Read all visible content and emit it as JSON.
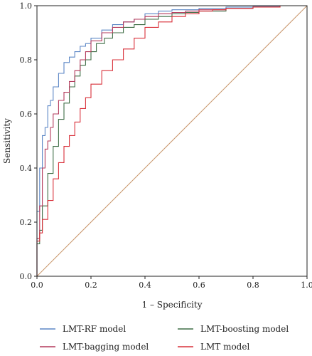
{
  "chart_data": {
    "type": "line",
    "title": "",
    "xlabel": "1 – Specificity",
    "ylabel": "Sensitivity",
    "xlim": [
      0,
      1
    ],
    "ylim": [
      0,
      1
    ],
    "xticks": [
      "0.0",
      "0.2",
      "0.4",
      "0.6",
      "0.8",
      "1.0"
    ],
    "yticks": [
      "0.0",
      "0.2",
      "0.4",
      "0.6",
      "0.8",
      "1.0"
    ],
    "grid": false,
    "legend_position": "bottom",
    "reference_line": {
      "color": "#c8956a",
      "x": [
        0,
        1
      ],
      "y": [
        0,
        1
      ]
    },
    "series": [
      {
        "name": "LMT-RF model",
        "color": "#5b86c5",
        "x": [
          0,
          0.01,
          0.02,
          0.03,
          0.04,
          0.05,
          0.06,
          0.08,
          0.1,
          0.12,
          0.14,
          0.16,
          0.18,
          0.2,
          0.24,
          0.28,
          0.32,
          0.36,
          0.4,
          0.45,
          0.5,
          0.6,
          0.7,
          0.8,
          0.9,
          0.96
        ],
        "y": [
          0,
          0.24,
          0.4,
          0.52,
          0.55,
          0.63,
          0.65,
          0.7,
          0.75,
          0.79,
          0.81,
          0.83,
          0.85,
          0.86,
          0.88,
          0.91,
          0.93,
          0.94,
          0.95,
          0.97,
          0.98,
          0.985,
          0.99,
          0.995,
          0.998,
          1.0
        ]
      },
      {
        "name": "LMT-boosting model",
        "color": "#3f6e46",
        "x": [
          0,
          0.01,
          0.02,
          0.04,
          0.06,
          0.08,
          0.1,
          0.12,
          0.14,
          0.16,
          0.18,
          0.2,
          0.22,
          0.25,
          0.28,
          0.32,
          0.36,
          0.4,
          0.45,
          0.5,
          0.55,
          0.6,
          0.7,
          0.8,
          0.9,
          0.96
        ],
        "y": [
          0,
          0.12,
          0.17,
          0.26,
          0.38,
          0.48,
          0.58,
          0.64,
          0.7,
          0.74,
          0.78,
          0.8,
          0.83,
          0.86,
          0.88,
          0.9,
          0.92,
          0.93,
          0.95,
          0.96,
          0.97,
          0.975,
          0.98,
          0.99,
          0.995,
          1.0
        ]
      },
      {
        "name": "LMT-bagging model",
        "color": "#b3395b",
        "x": [
          0,
          0.01,
          0.02,
          0.03,
          0.04,
          0.05,
          0.06,
          0.08,
          0.1,
          0.12,
          0.14,
          0.16,
          0.18,
          0.2,
          0.24,
          0.28,
          0.32,
          0.36,
          0.4,
          0.45,
          0.5,
          0.55,
          0.6,
          0.7,
          0.8,
          0.9,
          0.96
        ],
        "y": [
          0,
          0.14,
          0.26,
          0.4,
          0.47,
          0.5,
          0.55,
          0.6,
          0.65,
          0.68,
          0.72,
          0.76,
          0.8,
          0.83,
          0.87,
          0.9,
          0.92,
          0.94,
          0.95,
          0.96,
          0.97,
          0.975,
          0.98,
          0.985,
          0.99,
          0.995,
          1.0
        ]
      },
      {
        "name": "LMT model",
        "color": "#d9303a",
        "x": [
          0,
          0.01,
          0.02,
          0.04,
          0.06,
          0.08,
          0.1,
          0.12,
          0.14,
          0.16,
          0.18,
          0.2,
          0.24,
          0.28,
          0.32,
          0.36,
          0.4,
          0.45,
          0.5,
          0.55,
          0.6,
          0.65,
          0.7,
          0.8,
          0.9,
          0.96
        ],
        "y": [
          0,
          0.13,
          0.16,
          0.21,
          0.28,
          0.36,
          0.42,
          0.48,
          0.52,
          0.57,
          0.62,
          0.66,
          0.71,
          0.76,
          0.8,
          0.84,
          0.88,
          0.92,
          0.94,
          0.96,
          0.97,
          0.98,
          0.985,
          0.99,
          0.995,
          1.0
        ]
      }
    ],
    "legend_items": [
      {
        "label": "LMT-RF model",
        "color": "#5b86c5"
      },
      {
        "label": "LMT-boosting model",
        "color": "#3f6e46"
      },
      {
        "label": "LMT-bagging model",
        "color": "#b3395b"
      },
      {
        "label": "LMT model",
        "color": "#d9303a"
      }
    ]
  }
}
